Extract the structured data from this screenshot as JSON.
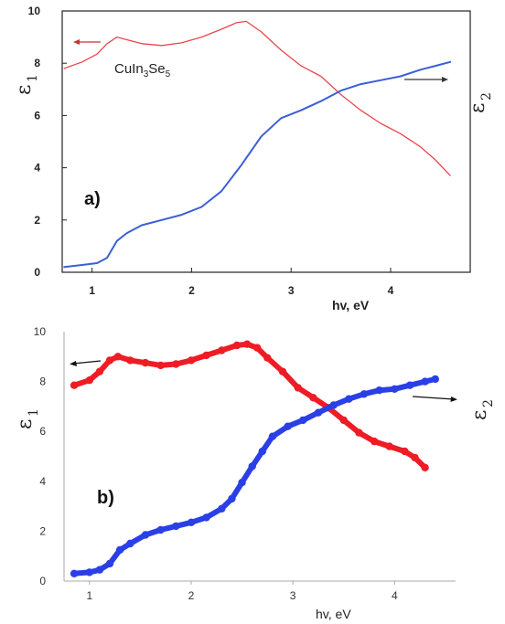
{
  "chart_data": [
    {
      "panel": "a",
      "type": "line",
      "panel_label": "a)",
      "annotation": {
        "base": "CuIn",
        "sub1": "3",
        "mid": "Se",
        "sub2": "5"
      },
      "xlabel": "hv, eV",
      "ylabel": {
        "symbol": "ε",
        "sub": "1"
      },
      "ylabel_right": {
        "symbol": "ε",
        "sub": "2"
      },
      "xlim": [
        0.7,
        4.8
      ],
      "ylim": [
        0,
        10
      ],
      "xticks": [
        "1",
        "2",
        "3",
        "4"
      ],
      "yticks": [
        "0",
        "2",
        "4",
        "6",
        "8",
        "10"
      ],
      "grid": false,
      "series": [
        {
          "color": "#e8474f",
          "points": [
            [
              0.72,
              7.8
            ],
            [
              0.9,
              8.05
            ],
            [
              1.05,
              8.35
            ],
            [
              1.15,
              8.75
            ],
            [
              1.25,
              9.0
            ],
            [
              1.35,
              8.9
            ],
            [
              1.5,
              8.75
            ],
            [
              1.7,
              8.68
            ],
            [
              1.9,
              8.78
            ],
            [
              2.1,
              9.0
            ],
            [
              2.3,
              9.3
            ],
            [
              2.45,
              9.55
            ],
            [
              2.55,
              9.6
            ],
            [
              2.7,
              9.2
            ],
            [
              2.9,
              8.5
            ],
            [
              3.1,
              7.9
            ],
            [
              3.3,
              7.5
            ],
            [
              3.5,
              6.8
            ],
            [
              3.7,
              6.2
            ],
            [
              3.9,
              5.7
            ],
            [
              4.1,
              5.3
            ],
            [
              4.3,
              4.8
            ],
            [
              4.45,
              4.3
            ],
            [
              4.6,
              3.7
            ]
          ]
        },
        {
          "color": "#3a5fd6",
          "points": [
            [
              0.72,
              0.2
            ],
            [
              0.9,
              0.28
            ],
            [
              1.05,
              0.35
            ],
            [
              1.15,
              0.55
            ],
            [
              1.25,
              1.2
            ],
            [
              1.35,
              1.5
            ],
            [
              1.5,
              1.8
            ],
            [
              1.7,
              2.0
            ],
            [
              1.9,
              2.2
            ],
            [
              2.1,
              2.5
            ],
            [
              2.3,
              3.1
            ],
            [
              2.5,
              4.1
            ],
            [
              2.7,
              5.2
            ],
            [
              2.9,
              5.9
            ],
            [
              3.1,
              6.2
            ],
            [
              3.3,
              6.55
            ],
            [
              3.5,
              6.95
            ],
            [
              3.7,
              7.2
            ],
            [
              3.9,
              7.35
            ],
            [
              4.1,
              7.5
            ],
            [
              4.3,
              7.75
            ],
            [
              4.45,
              7.9
            ],
            [
              4.6,
              8.05
            ]
          ]
        }
      ]
    },
    {
      "panel": "b",
      "type": "scatter",
      "panel_label": "b)",
      "xlabel": "hv, eV",
      "ylabel": {
        "symbol": "ε",
        "sub": "1"
      },
      "ylabel_right": {
        "symbol": "ε",
        "sub": "2"
      },
      "xlim": [
        0.75,
        4.6
      ],
      "ylim": [
        0,
        10
      ],
      "xticks": [
        "1",
        "2",
        "3",
        "4"
      ],
      "yticks": [
        "0",
        "2",
        "4",
        "6",
        "8",
        "10"
      ],
      "grid": false,
      "series": [
        {
          "color": "#ee1c25",
          "points": [
            [
              0.85,
              7.85
            ],
            [
              1.0,
              8.05
            ],
            [
              1.1,
              8.4
            ],
            [
              1.2,
              8.85
            ],
            [
              1.28,
              9.0
            ],
            [
              1.4,
              8.85
            ],
            [
              1.55,
              8.75
            ],
            [
              1.7,
              8.65
            ],
            [
              1.85,
              8.7
            ],
            [
              2.0,
              8.85
            ],
            [
              2.15,
              9.05
            ],
            [
              2.3,
              9.25
            ],
            [
              2.45,
              9.45
            ],
            [
              2.55,
              9.5
            ],
            [
              2.65,
              9.35
            ],
            [
              2.75,
              8.95
            ],
            [
              2.9,
              8.4
            ],
            [
              3.05,
              7.75
            ],
            [
              3.2,
              7.35
            ],
            [
              3.35,
              6.95
            ],
            [
              3.5,
              6.45
            ],
            [
              3.65,
              5.95
            ],
            [
              3.8,
              5.6
            ],
            [
              3.95,
              5.4
            ],
            [
              4.1,
              5.2
            ],
            [
              4.2,
              4.95
            ],
            [
              4.3,
              4.55
            ]
          ]
        },
        {
          "color": "#2b3fe6",
          "points": [
            [
              0.85,
              0.3
            ],
            [
              1.0,
              0.35
            ],
            [
              1.1,
              0.45
            ],
            [
              1.2,
              0.7
            ],
            [
              1.3,
              1.25
            ],
            [
              1.4,
              1.5
            ],
            [
              1.55,
              1.85
            ],
            [
              1.7,
              2.05
            ],
            [
              1.85,
              2.2
            ],
            [
              2.0,
              2.35
            ],
            [
              2.15,
              2.55
            ],
            [
              2.3,
              2.9
            ],
            [
              2.4,
              3.3
            ],
            [
              2.5,
              3.95
            ],
            [
              2.6,
              4.6
            ],
            [
              2.7,
              5.2
            ],
            [
              2.8,
              5.8
            ],
            [
              2.95,
              6.2
            ],
            [
              3.1,
              6.45
            ],
            [
              3.25,
              6.75
            ],
            [
              3.4,
              7.05
            ],
            [
              3.55,
              7.3
            ],
            [
              3.7,
              7.5
            ],
            [
              3.85,
              7.65
            ],
            [
              4.0,
              7.7
            ],
            [
              4.15,
              7.85
            ],
            [
              4.3,
              8.0
            ],
            [
              4.4,
              8.1
            ]
          ]
        }
      ]
    }
  ]
}
